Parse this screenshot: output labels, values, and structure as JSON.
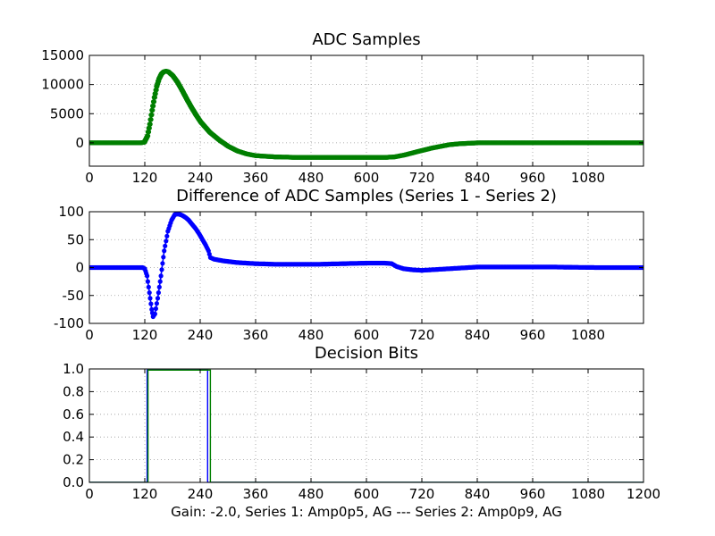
{
  "footer_text": "Gain: -2.0, Series 1: Amp0p5, AG --- Series 2: Amp0p9, AG",
  "chart_data": [
    {
      "type": "scatter",
      "title": "ADC Samples",
      "xlabel": "",
      "ylabel": "",
      "xlim": [
        0,
        1200
      ],
      "ylim": [
        -4000,
        15000
      ],
      "x_ticks": [
        0,
        120,
        240,
        360,
        480,
        600,
        720,
        840,
        960,
        1080
      ],
      "y_ticks": [
        0,
        5000,
        10000,
        15000
      ],
      "grid": true,
      "marker_size": 2.6,
      "series": [
        {
          "color": "#007f00",
          "x": [
            0,
            60,
            110,
            118,
            125,
            130,
            135,
            140,
            145,
            150,
            155,
            160,
            165,
            170,
            180,
            190,
            200,
            210,
            220,
            230,
            240,
            260,
            280,
            300,
            320,
            340,
            360,
            400,
            450,
            500,
            550,
            600,
            640,
            660,
            680,
            700,
            720,
            740,
            760,
            780,
            800,
            840,
            900,
            1000,
            1100,
            1200
          ],
          "y": [
            0,
            0,
            0,
            100,
            1200,
            3200,
            5600,
            7800,
            9700,
            11000,
            11800,
            12200,
            12300,
            12200,
            11500,
            10400,
            9000,
            7500,
            6100,
            4800,
            3600,
            1800,
            500,
            -600,
            -1400,
            -1900,
            -2200,
            -2400,
            -2500,
            -2500,
            -2500,
            -2500,
            -2500,
            -2400,
            -2100,
            -1700,
            -1300,
            -900,
            -600,
            -300,
            -150,
            0,
            0,
            0,
            0,
            0
          ]
        },
        {
          "color": "#007f00",
          "x": [
            0,
            60,
            110,
            120,
            127,
            132,
            137,
            142,
            147,
            152,
            157,
            162,
            167,
            172,
            182,
            192,
            202,
            212,
            222,
            232,
            242,
            262,
            282,
            302,
            322,
            342,
            362,
            402,
            452,
            502,
            552,
            602,
            642,
            662,
            682,
            702,
            722,
            742,
            762,
            782,
            802,
            842,
            902,
            1002,
            1102,
            1200
          ],
          "y": [
            0,
            0,
            0,
            100,
            1200,
            3200,
            5600,
            7800,
            9700,
            11000,
            11800,
            12200,
            12300,
            12200,
            11500,
            10400,
            9000,
            7500,
            6100,
            4800,
            3600,
            1800,
            500,
            -600,
            -1400,
            -1900,
            -2200,
            -2400,
            -2500,
            -2500,
            -2500,
            -2500,
            -2500,
            -2400,
            -2100,
            -1700,
            -1300,
            -900,
            -600,
            -300,
            -150,
            0,
            0,
            0,
            0,
            0
          ]
        }
      ]
    },
    {
      "type": "scatter",
      "title": "Difference of ADC Samples (Series 1 - Series 2)",
      "xlabel": "",
      "ylabel": "",
      "xlim": [
        0,
        1200
      ],
      "ylim": [
        -100,
        100
      ],
      "x_ticks": [
        0,
        120,
        240,
        360,
        480,
        600,
        720,
        840,
        960,
        1080
      ],
      "y_ticks": [
        -100,
        -50,
        0,
        50,
        100
      ],
      "grid": true,
      "marker_size": 2.6,
      "series": [
        {
          "color": "#0000ff",
          "x": [
            0,
            60,
            110,
            115,
            120,
            125,
            130,
            135,
            138,
            142,
            148,
            155,
            162,
            170,
            178,
            185,
            192,
            200,
            208,
            215,
            222,
            230,
            238,
            245,
            252,
            258,
            262,
            270,
            290,
            320,
            360,
            400,
            450,
            500,
            550,
            600,
            640,
            655,
            665,
            680,
            700,
            720,
            740,
            760,
            800,
            840,
            900,
            1000,
            1100,
            1200
          ],
          "y": [
            0,
            0,
            0,
            0,
            -2,
            -15,
            -45,
            -75,
            -88,
            -83,
            -55,
            -15,
            30,
            65,
            85,
            95,
            96,
            94,
            90,
            85,
            78,
            70,
            60,
            50,
            40,
            30,
            18,
            15,
            12,
            9,
            7,
            6,
            6,
            6,
            7,
            8,
            8,
            7,
            2,
            -2,
            -4,
            -5,
            -4,
            -3,
            -1,
            1,
            1,
            1,
            0,
            0
          ]
        }
      ]
    },
    {
      "type": "line",
      "title": "Decision Bits",
      "xlabel": "Gain: -2.0, Series 1: Amp0p5, AG --- Series 2: Amp0p9, AG",
      "ylabel": "",
      "xlim": [
        0,
        1200
      ],
      "ylim": [
        0,
        1
      ],
      "x_ticks": [
        0,
        120,
        240,
        360,
        480,
        600,
        720,
        840,
        960,
        1080,
        1200
      ],
      "y_ticks": [
        0.0,
        0.2,
        0.4,
        0.6,
        0.8,
        1.0
      ],
      "grid": true,
      "series": [
        {
          "color": "#0000ff",
          "x": [
            0,
            125,
            125,
            256,
            256,
            1200
          ],
          "y": [
            0,
            0,
            0.99,
            0.99,
            0,
            0
          ]
        },
        {
          "color": "#007f00",
          "x": [
            0,
            127,
            127,
            262,
            262,
            1200
          ],
          "y": [
            0,
            0,
            0.99,
            0.99,
            0,
            0
          ]
        }
      ]
    }
  ]
}
